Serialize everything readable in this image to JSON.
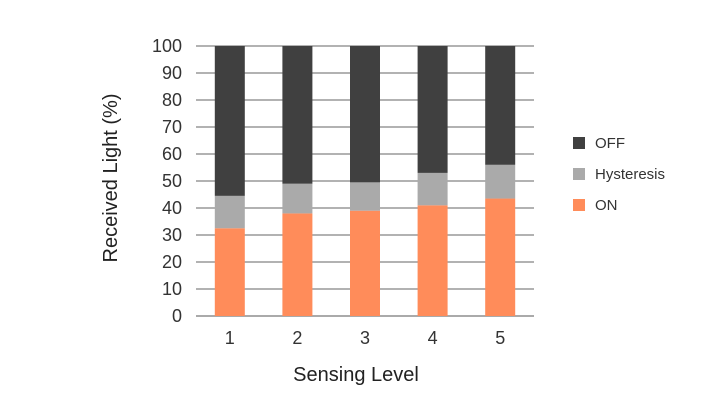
{
  "chart_data": {
    "type": "bar",
    "stacked": true,
    "title": "",
    "xlabel": "Sensing Level",
    "ylabel": "Received Light (%)",
    "categories": [
      "1",
      "2",
      "3",
      "4",
      "5"
    ],
    "ylim": [
      0,
      100
    ],
    "yticks": [
      "0",
      "10",
      "20",
      "30",
      "40",
      "50",
      "60",
      "70",
      "80",
      "90",
      "100"
    ],
    "grid": true,
    "legend_placement": "right",
    "series": [
      {
        "name": "ON",
        "color": "#ff8c5a",
        "values": [
          32.5,
          38,
          39,
          41,
          43.5
        ]
      },
      {
        "name": "Hysteresis",
        "color": "#aaaaaa",
        "values": [
          12,
          11,
          10.5,
          12,
          12.5
        ]
      },
      {
        "name": "OFF",
        "color": "#404040",
        "values": [
          55.5,
          51,
          50.5,
          47,
          44
        ]
      }
    ],
    "legend_order": [
      "OFF",
      "Hysteresis",
      "ON"
    ]
  }
}
